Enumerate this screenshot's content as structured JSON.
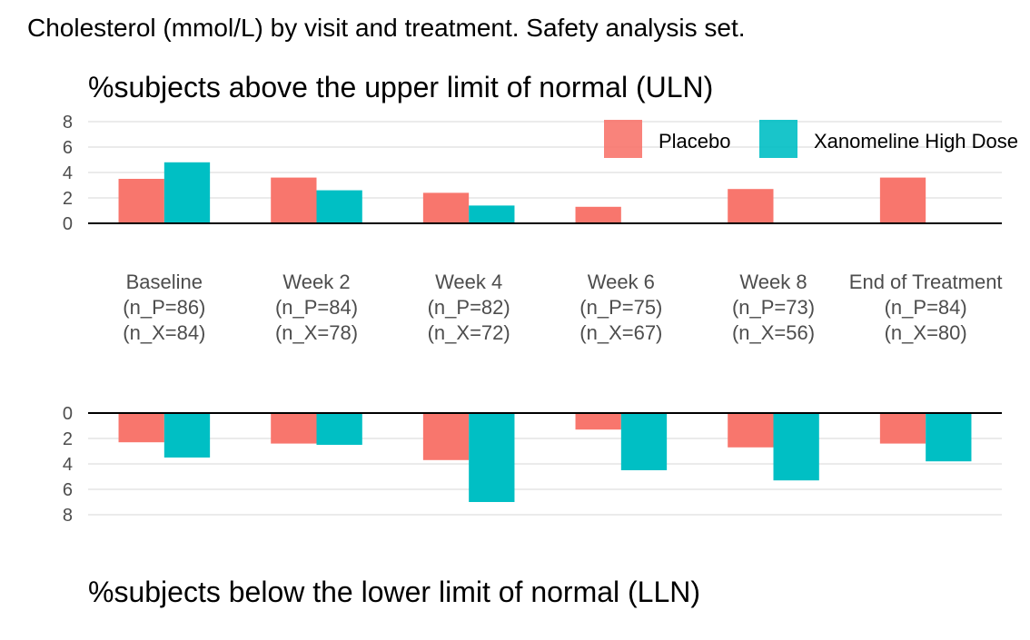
{
  "page_title": "Cholesterol (mmol/L) by visit and treatment. Safety analysis set.",
  "colors": {
    "placebo": "#F8766D",
    "xanomeline": "#00BFC4",
    "axis": "#000000",
    "grid": "#EBEBEB",
    "tick_text": "#4D4D4D"
  },
  "chart_data": [
    {
      "type": "bar",
      "title": "%subjects above the upper limit of normal (ULN)",
      "ylim": [
        0,
        8
      ],
      "yticks": [
        "0",
        "2",
        "4",
        "6",
        "8"
      ],
      "grid": true,
      "legend_position": "top-right",
      "categories": [
        "Baseline",
        "Week 2",
        "Week 4",
        "Week 6",
        "Week 8",
        "End of Treatment"
      ],
      "category_labels": [
        [
          "Baseline",
          "(n_P=86)",
          "(n_X=84)"
        ],
        [
          "Week 2",
          "(n_P=84)",
          "(n_X=78)"
        ],
        [
          "Week 4",
          "(n_P=82)",
          "(n_X=72)"
        ],
        [
          "Week 6",
          "(n_P=75)",
          "(n_X=67)"
        ],
        [
          "Week 8",
          "(n_P=73)",
          "(n_X=56)"
        ],
        [
          "End of Treatment",
          "(n_P=84)",
          "(n_X=80)"
        ]
      ],
      "series": [
        {
          "name": "Placebo",
          "color": "#F8766D",
          "values": [
            3.5,
            3.6,
            2.4,
            1.3,
            2.7,
            3.6
          ]
        },
        {
          "name": "Xanomeline High Dose",
          "color": "#00BFC4",
          "values": [
            4.8,
            2.6,
            1.4,
            0,
            0,
            0
          ]
        }
      ]
    },
    {
      "type": "bar",
      "title": "%subjects below the lower limit of normal (LLN)",
      "ylim": [
        0,
        8
      ],
      "yticks": [
        "0",
        "2",
        "4",
        "6",
        "8"
      ],
      "grid": true,
      "direction": "downward",
      "categories": [
        "Baseline",
        "Week 2",
        "Week 4",
        "Week 6",
        "Week 8",
        "End of Treatment"
      ],
      "series": [
        {
          "name": "Placebo",
          "color": "#F8766D",
          "values": [
            2.3,
            2.4,
            3.7,
            1.3,
            2.7,
            2.4
          ]
        },
        {
          "name": "Xanomeline High Dose",
          "color": "#00BFC4",
          "values": [
            3.5,
            2.5,
            7.0,
            4.5,
            5.3,
            3.8
          ]
        }
      ]
    }
  ]
}
